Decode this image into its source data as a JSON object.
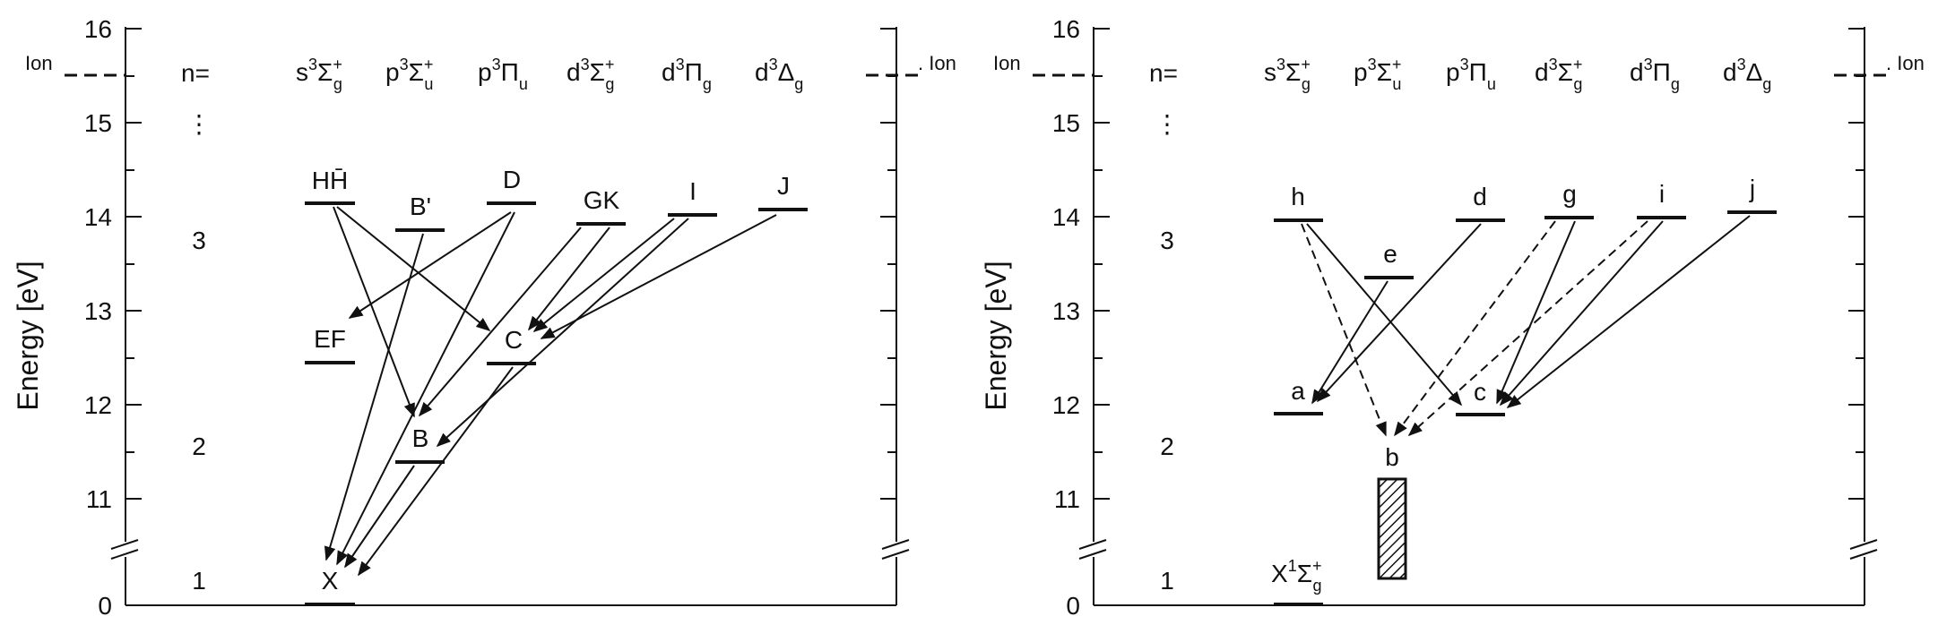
{
  "panels": [
    {
      "id": "left",
      "y_axis_title": "Energy [eV]",
      "y_ticks": [
        "0",
        "11",
        "12",
        "13",
        "14",
        "15",
        "16"
      ],
      "ion_label": "Ion",
      "ion_label_right": ". Ion",
      "n_label": "n=",
      "n_values": [
        "1",
        "2",
        "3"
      ],
      "n_dots": "⋮",
      "series_headers": [
        {
          "main": "s",
          "sup": "3",
          "greek": "Σ",
          "gsup": "+",
          "gsub": "g"
        },
        {
          "main": "p",
          "sup": "3",
          "greek": "Σ",
          "gsup": "+",
          "gsub": "u"
        },
        {
          "main": "p",
          "sup": "3",
          "greek": "Π",
          "gsup": "",
          "gsub": "u"
        },
        {
          "main": "d",
          "sup": "3",
          "greek": "Σ",
          "gsup": "+",
          "gsub": "g"
        },
        {
          "main": "d",
          "sup": "3",
          "greek": "Π",
          "gsup": "",
          "gsub": "g"
        },
        {
          "main": "d",
          "sup": "3",
          "greek": "Δ",
          "gsup": "",
          "gsub": "g"
        }
      ],
      "state_labels": {
        "HH": "HH̄",
        "Bp": "B'",
        "D": "D",
        "GK": "GK",
        "I": "I",
        "J": "J",
        "EF": "EF",
        "C": "C",
        "B": "B",
        "X": "X"
      }
    },
    {
      "id": "right",
      "y_axis_title": "Energy [eV]",
      "y_ticks": [
        "0",
        "11",
        "12",
        "13",
        "14",
        "15",
        "16"
      ],
      "ion_label": "Ion",
      "ion_label_right": ". Ion",
      "n_label": "n=",
      "n_values": [
        "1",
        "2",
        "3"
      ],
      "n_dots": "⋮",
      "series_headers": [
        {
          "main": "s",
          "sup": "3",
          "greek": "Σ",
          "gsup": "+",
          "gsub": "g"
        },
        {
          "main": "p",
          "sup": "3",
          "greek": "Σ",
          "gsup": "+",
          "gsub": "u"
        },
        {
          "main": "p",
          "sup": "3",
          "greek": "Π",
          "gsup": "",
          "gsub": "u"
        },
        {
          "main": "d",
          "sup": "3",
          "greek": "Σ",
          "gsup": "+",
          "gsub": "g"
        },
        {
          "main": "d",
          "sup": "3",
          "greek": "Π",
          "gsup": "",
          "gsub": "g"
        },
        {
          "main": "d",
          "sup": "3",
          "greek": "Δ",
          "gsup": "",
          "gsub": "g"
        }
      ],
      "state_labels": {
        "h": "h",
        "e": "e",
        "d": "d",
        "g": "g",
        "i": "i",
        "j": "j",
        "a": "a",
        "c": "c",
        "b": "b",
        "X_main": "X",
        "X_sup": "1",
        "X_greek": "Σ",
        "X_gsup": "+",
        "X_gsub": "g"
      }
    }
  ],
  "colors": {
    "ink": "#111111",
    "background": "#ffffff"
  }
}
